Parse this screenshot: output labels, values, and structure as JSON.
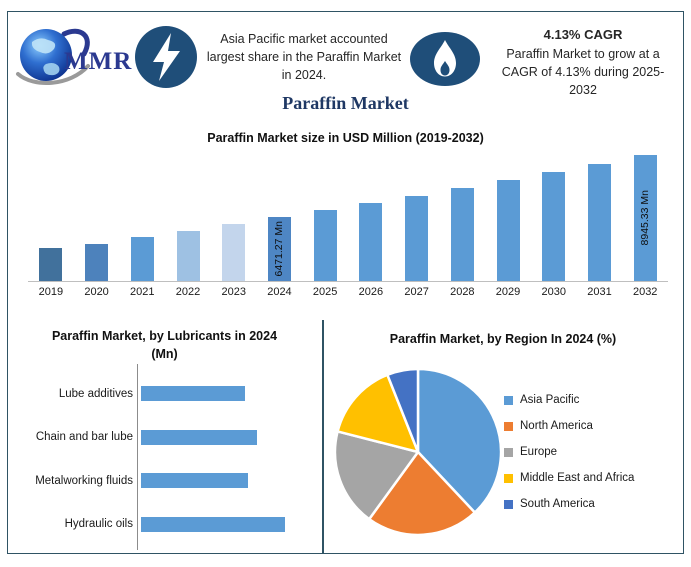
{
  "colors": {
    "frame": "#2F5364",
    "icon_bg": "#1F4E79",
    "page_title": "#1F3864",
    "logo_text": "#2B3990",
    "axis": "#BFBFBF"
  },
  "header": {
    "logo_text": "MMR",
    "left_note": "Asia Pacific market accounted largest share in the Paraffin Market in 2024.",
    "cagr_title": "4.13% CAGR",
    "cagr_note": "Paraffin Market to grow at a CAGR of 4.13% during 2025-2032"
  },
  "page_title": "Paraffin Market",
  "chart_data": [
    {
      "type": "bar",
      "title": "Paraffin Market size in USD Million (2019-2032)",
      "categories": [
        "2019",
        "2020",
        "2021",
        "2022",
        "2023",
        "2024",
        "2025",
        "2026",
        "2027",
        "2028",
        "2029",
        "2030",
        "2031",
        "2032"
      ],
      "values": [
        5200,
        5390,
        5640,
        5890,
        6170,
        6471.27,
        6738.5,
        7016.8,
        7306.6,
        7608.4,
        7922.6,
        8249.8,
        8590.5,
        8945.33
      ],
      "bar_labels": {
        "2024": "6471.27 Mn",
        "2032": "8945.33 Mn"
      },
      "ylim": [
        3900,
        9500
      ],
      "ylabel": "USD Million",
      "grid": false,
      "bar_colors": [
        "#41719C",
        "#4D82BC",
        "#5B9BD5",
        "#9EC1E3",
        "#C3D5EC",
        "#4E86C4",
        "#5B9BD5",
        "#5B9BD5",
        "#5B9BD5",
        "#5B9BD5",
        "#5B9BD5",
        "#5B9BD5",
        "#5B9BD5",
        "#5B9BD5"
      ]
    },
    {
      "type": "bar-horizontal",
      "title": "Paraffin Market, by Lubricants in 2024\n(Mn)",
      "categories": [
        "Lube additives",
        "Chain and bar lube",
        "Metalworking fluids",
        "Hydraulic oils"
      ],
      "values": [
        1430,
        1600,
        1470,
        1980
      ],
      "xlim": [
        0,
        2400
      ],
      "grid": false,
      "bar_color": "#5B9BD5"
    },
    {
      "type": "pie",
      "title": "Paraffin Market, by Region In 2024 (%)",
      "labels": [
        "Asia Pacific",
        "North America",
        "Europe",
        "Middle East and Africa",
        "South America"
      ],
      "values": [
        38,
        22,
        19,
        15,
        6
      ],
      "colors": [
        "#5B9BD5",
        "#ED7D31",
        "#A5A5A5",
        "#FFC000",
        "#4472C4"
      ],
      "legend_position": "right"
    }
  ]
}
